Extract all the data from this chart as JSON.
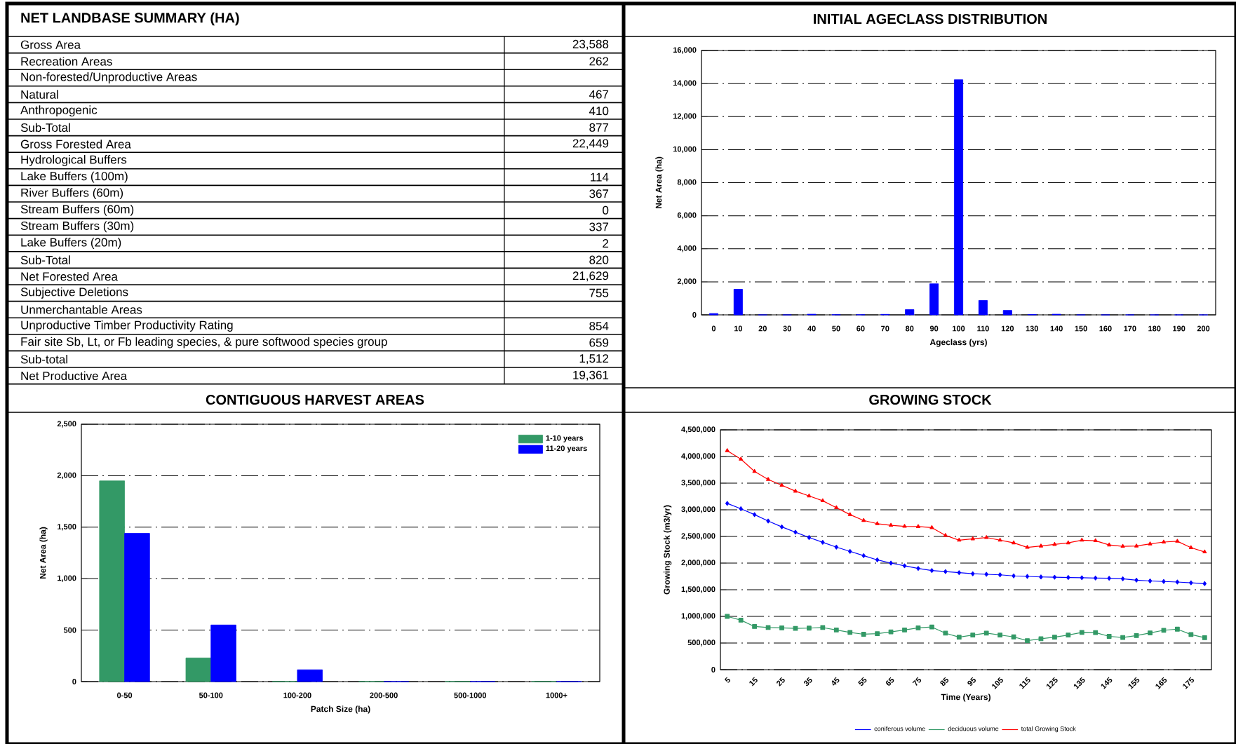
{
  "chart_data": [
    {
      "type": "other",
      "title": "NET LANDBASE SUMMARY (HA)",
      "categories": [
        "Gross Area",
        "Recreation Areas",
        "Non-forested/Unproductive Areas",
        "Natural",
        "Anthropogenic",
        "Sub-Total",
        "Gross Forested Area",
        "Hydrological Buffers",
        "Lake Buffers (100m)",
        "River Buffers (60m)",
        "Stream Buffers (60m)",
        "Stream Buffers (30m)",
        "Lake Buffers (20m)",
        "Sub-Total",
        "Net Forested Area",
        "Subjective Deletions",
        "Unmerchantable Areas",
        "Unproductive Timber Productivity Rating",
        "Fair site Sb, Lt, or Fb leading species, & pure softwood species group",
        "Sub-total",
        "Net Productive Area"
      ],
      "value_labels": [
        "23,588",
        "262",
        null,
        "467",
        "410",
        "877",
        "22,449",
        null,
        "114",
        "367",
        "0",
        "337",
        "2",
        "820",
        "21,629",
        "755",
        null,
        "854",
        "659",
        "1,512",
        "19,361"
      ]
    },
    {
      "type": "bar",
      "title": "INITIAL AGECLASS DISTRIBUTION",
      "xlabel": "Ageclass (yrs)",
      "ylabel": "Net Area (ha)",
      "categories": [
        "0",
        "10",
        "20",
        "30",
        "40",
        "50",
        "60",
        "70",
        "80",
        "90",
        "100",
        "110",
        "120",
        "130",
        "140",
        "150",
        "160",
        "170",
        "180",
        "190",
        "200"
      ],
      "values": [
        80,
        1550,
        0,
        0,
        40,
        10,
        10,
        30,
        320,
        1880,
        14230,
        870,
        270,
        20,
        40,
        0,
        0,
        0,
        0,
        0,
        0
      ],
      "color": "#0000ff",
      "ylim": [
        0,
        16000
      ],
      "yticks": [
        0,
        {
          "value": 2000,
          "label": "2,000"
        },
        {
          "value": 4000,
          "label": "4,000"
        },
        {
          "value": 6000,
          "label": "6,000"
        },
        {
          "value": 8000,
          "label": "8,000"
        },
        {
          "value": 10000,
          "label": "10,000"
        },
        {
          "value": 12000,
          "label": "12,000"
        },
        {
          "value": 14000,
          "label": "14,000"
        },
        {
          "value": 16000,
          "label": "16,000"
        }
      ],
      "grid": "y"
    },
    {
      "type": "bar",
      "title": "CONTIGUOUS HARVEST AREAS",
      "xlabel": "Patch Size (ha)",
      "ylabel": "Net Area (ha)",
      "categories": [
        "0-50",
        "50-100",
        "100-200",
        "200-500",
        "500-1000",
        "1000+"
      ],
      "series": [
        {
          "name": "1-10 years",
          "color": "#339966",
          "values": [
            1950,
            230,
            0,
            0,
            0,
            0
          ]
        },
        {
          "name": "11-20 years",
          "color": "#0000ff",
          "values": [
            1440,
            550,
            115,
            0,
            0,
            0
          ]
        }
      ],
      "ylim": [
        0,
        2500
      ],
      "yticks": [
        0,
        500,
        {
          "value": 1000,
          "label": "1,000"
        },
        {
          "value": 1500,
          "label": "1,500"
        },
        {
          "value": 2000,
          "label": "2,000"
        },
        {
          "value": 2500,
          "label": "2,500"
        }
      ],
      "grid": "y",
      "legend": "top right"
    },
    {
      "type": "line",
      "title": "GROWING STOCK",
      "xlabel": "Time (Years)",
      "ylabel": "Growing Stock (m3/yr)",
      "categories": [
        "5",
        null,
        "15",
        null,
        "25",
        null,
        "35",
        null,
        "45",
        null,
        "55",
        null,
        "65",
        null,
        "75",
        null,
        "85",
        null,
        "95",
        null,
        "105",
        null,
        "115",
        null,
        "125",
        null,
        "135",
        null,
        "145",
        null,
        "155",
        null,
        "165",
        null,
        "175",
        null
      ],
      "series": [
        {
          "name": "coniferous volume",
          "color": "#0000ff",
          "marker": "diamond",
          "values": [
            3120000,
            3020000,
            2910000,
            2790000,
            2680000,
            2580000,
            2480000,
            2390000,
            2300000,
            2220000,
            2140000,
            2060000,
            2000000,
            1950000,
            1900000,
            1860000,
            1840000,
            1820000,
            1800000,
            1790000,
            1780000,
            1760000,
            1750000,
            1740000,
            1735000,
            1730000,
            1725000,
            1720000,
            1715000,
            1705000,
            1680000,
            1665000,
            1655000,
            1645000,
            1630000,
            1615000
          ]
        },
        {
          "name": "deciduous volume",
          "color": "#339966",
          "marker": "square",
          "values": [
            1000000,
            930000,
            810000,
            790000,
            785000,
            775000,
            780000,
            790000,
            745000,
            700000,
            665000,
            675000,
            710000,
            745000,
            785000,
            800000,
            685000,
            610000,
            650000,
            685000,
            650000,
            615000,
            545000,
            580000,
            610000,
            650000,
            700000,
            695000,
            625000,
            605000,
            640000,
            690000,
            740000,
            760000,
            660000,
            600000
          ]
        },
        {
          "name": "total Growing Stock",
          "color": "#ff0000",
          "marker": "triangle",
          "values": [
            4110000,
            3950000,
            3720000,
            3570000,
            3460000,
            3350000,
            3260000,
            3170000,
            3040000,
            2910000,
            2800000,
            2740000,
            2710000,
            2690000,
            2685000,
            2665000,
            2520000,
            2430000,
            2455000,
            2480000,
            2430000,
            2380000,
            2295000,
            2320000,
            2350000,
            2380000,
            2430000,
            2420000,
            2340000,
            2315000,
            2320000,
            2360000,
            2395000,
            2410000,
            2290000,
            2210000
          ]
        }
      ],
      "ylim": [
        0,
        4500000
      ],
      "yticks": [
        0,
        {
          "value": 500000,
          "label": "500,000"
        },
        {
          "value": 1000000,
          "label": "1,000,000"
        },
        {
          "value": 1500000,
          "label": "1,500,000"
        },
        {
          "value": 2000000,
          "label": "2,000,000"
        },
        {
          "value": 2500000,
          "label": "2,500,000"
        },
        {
          "value": 3000000,
          "label": "3,000,000"
        },
        {
          "value": 3500000,
          "label": "3,500,000"
        },
        {
          "value": 4000000,
          "label": "4,000,000"
        },
        {
          "value": 4500000,
          "label": "4,500,000"
        }
      ],
      "grid": "y",
      "legend": "bottom"
    }
  ]
}
